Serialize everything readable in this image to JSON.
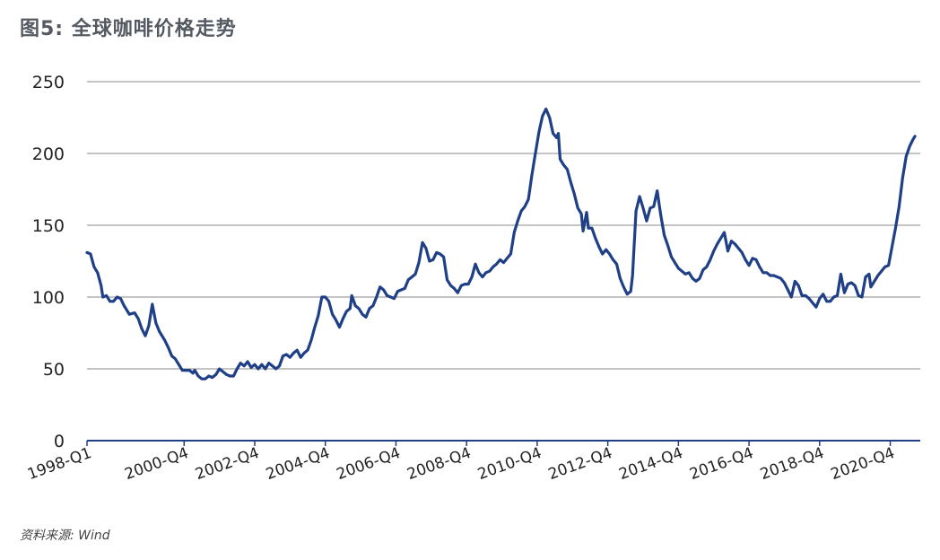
{
  "title": "图5: 全球咖啡价格走势",
  "source": "资料来源: Wind",
  "colors": {
    "line": "#1f3f86",
    "grid": "#8a8a8a",
    "axis": "#1f3f86"
  },
  "chart_data": {
    "type": "line",
    "title": "图5: 全球咖啡价格走势",
    "xlabel": "",
    "ylabel": "",
    "ylim": [
      0,
      250
    ],
    "yticks": [
      "0",
      "50",
      "100",
      "150",
      "200",
      "250"
    ],
    "xlim": [
      1998.0,
      2021.6
    ],
    "xticks": [
      {
        "label": "1998-Q1",
        "x": 1998.0
      },
      {
        "label": "2000-Q4",
        "x": 2000.75
      },
      {
        "label": "2002-Q4",
        "x": 2002.75
      },
      {
        "label": "2004-Q4",
        "x": 2004.75
      },
      {
        "label": "2006-Q4",
        "x": 2006.75
      },
      {
        "label": "2008-Q4",
        "x": 2008.75
      },
      {
        "label": "2010-Q4",
        "x": 2010.75
      },
      {
        "label": "2012-Q4",
        "x": 2012.75
      },
      {
        "label": "2014-Q4",
        "x": 2014.75
      },
      {
        "label": "2016-Q4",
        "x": 2016.75
      },
      {
        "label": "2018-Q4",
        "x": 2018.75
      },
      {
        "label": "2020-Q4",
        "x": 2020.75
      }
    ],
    "grid": true,
    "series": [
      {
        "values": [
          [
            1998.0,
            131
          ],
          [
            1998.1,
            130
          ],
          [
            1998.2,
            121
          ],
          [
            1998.3,
            117
          ],
          [
            1998.4,
            108
          ],
          [
            1998.45,
            100
          ],
          [
            1998.55,
            101
          ],
          [
            1998.65,
            97
          ],
          [
            1998.75,
            97
          ],
          [
            1998.85,
            100
          ],
          [
            1998.95,
            99
          ],
          [
            1999.05,
            94
          ],
          [
            1999.2,
            88
          ],
          [
            1999.35,
            89
          ],
          [
            1999.45,
            85
          ],
          [
            1999.55,
            78
          ],
          [
            1999.65,
            73
          ],
          [
            1999.75,
            80
          ],
          [
            1999.85,
            95
          ],
          [
            1999.95,
            82
          ],
          [
            2000.05,
            76
          ],
          [
            2000.2,
            70
          ],
          [
            2000.3,
            65
          ],
          [
            2000.4,
            59
          ],
          [
            2000.5,
            57
          ],
          [
            2000.6,
            53
          ],
          [
            2000.7,
            49
          ],
          [
            2000.8,
            49
          ],
          [
            2000.9,
            49
          ],
          [
            2001.0,
            47
          ],
          [
            2001.05,
            49
          ],
          [
            2001.15,
            45
          ],
          [
            2001.25,
            43
          ],
          [
            2001.35,
            43
          ],
          [
            2001.45,
            45
          ],
          [
            2001.55,
            44
          ],
          [
            2001.65,
            46
          ],
          [
            2001.75,
            50
          ],
          [
            2001.85,
            48
          ],
          [
            2001.95,
            46
          ],
          [
            2002.05,
            45
          ],
          [
            2002.15,
            45
          ],
          [
            2002.25,
            50
          ],
          [
            2002.35,
            54
          ],
          [
            2002.45,
            52
          ],
          [
            2002.55,
            55
          ],
          [
            2002.65,
            51
          ],
          [
            2002.75,
            53
          ],
          [
            2002.85,
            50
          ],
          [
            2002.95,
            53
          ],
          [
            2003.05,
            50
          ],
          [
            2003.15,
            54
          ],
          [
            2003.25,
            52
          ],
          [
            2003.35,
            50
          ],
          [
            2003.45,
            52
          ],
          [
            2003.55,
            59
          ],
          [
            2003.65,
            60
          ],
          [
            2003.75,
            58
          ],
          [
            2003.85,
            61
          ],
          [
            2003.95,
            63
          ],
          [
            2004.05,
            58
          ],
          [
            2004.15,
            61
          ],
          [
            2004.25,
            63
          ],
          [
            2004.35,
            70
          ],
          [
            2004.45,
            79
          ],
          [
            2004.55,
            87
          ],
          [
            2004.65,
            100
          ],
          [
            2004.75,
            100
          ],
          [
            2004.85,
            97
          ],
          [
            2004.95,
            88
          ],
          [
            2005.05,
            84
          ],
          [
            2005.15,
            79
          ],
          [
            2005.25,
            85
          ],
          [
            2005.35,
            90
          ],
          [
            2005.45,
            92
          ],
          [
            2005.5,
            101
          ],
          [
            2005.6,
            94
          ],
          [
            2005.7,
            92
          ],
          [
            2005.8,
            88
          ],
          [
            2005.9,
            86
          ],
          [
            2006.0,
            92
          ],
          [
            2006.1,
            94
          ],
          [
            2006.2,
            100
          ],
          [
            2006.3,
            107
          ],
          [
            2006.4,
            105
          ],
          [
            2006.5,
            101
          ],
          [
            2006.6,
            100
          ],
          [
            2006.7,
            99
          ],
          [
            2006.8,
            104
          ],
          [
            2006.9,
            105
          ],
          [
            2007.0,
            106
          ],
          [
            2007.1,
            112
          ],
          [
            2007.2,
            114
          ],
          [
            2007.3,
            116
          ],
          [
            2007.4,
            124
          ],
          [
            2007.5,
            138
          ],
          [
            2007.6,
            134
          ],
          [
            2007.7,
            125
          ],
          [
            2007.8,
            126
          ],
          [
            2007.9,
            131
          ],
          [
            2008.0,
            130
          ],
          [
            2008.1,
            128
          ],
          [
            2008.2,
            112
          ],
          [
            2008.3,
            108
          ],
          [
            2008.4,
            106
          ],
          [
            2008.5,
            103
          ],
          [
            2008.6,
            108
          ],
          [
            2008.7,
            109
          ],
          [
            2008.8,
            109
          ],
          [
            2008.9,
            114
          ],
          [
            2009.0,
            123
          ],
          [
            2009.1,
            117
          ],
          [
            2009.2,
            114
          ],
          [
            2009.3,
            117
          ],
          [
            2009.4,
            118
          ],
          [
            2009.5,
            121
          ],
          [
            2009.6,
            123
          ],
          [
            2009.7,
            126
          ],
          [
            2009.8,
            124
          ],
          [
            2009.9,
            127
          ],
          [
            2010.0,
            130
          ],
          [
            2010.1,
            145
          ],
          [
            2010.2,
            153
          ],
          [
            2010.3,
            160
          ],
          [
            2010.4,
            163
          ],
          [
            2010.5,
            168
          ],
          [
            2010.6,
            185
          ],
          [
            2010.7,
            200
          ],
          [
            2010.8,
            215
          ],
          [
            2010.9,
            226
          ],
          [
            2011.0,
            231
          ],
          [
            2011.1,
            225
          ],
          [
            2011.2,
            214
          ],
          [
            2011.3,
            211
          ],
          [
            2011.35,
            214
          ],
          [
            2011.4,
            196
          ],
          [
            2011.5,
            192
          ],
          [
            2011.6,
            189
          ],
          [
            2011.7,
            180
          ],
          [
            2011.8,
            172
          ],
          [
            2011.9,
            162
          ],
          [
            2012.0,
            158
          ],
          [
            2012.05,
            146
          ],
          [
            2012.15,
            159
          ],
          [
            2012.2,
            148
          ],
          [
            2012.3,
            148
          ],
          [
            2012.4,
            141
          ],
          [
            2012.5,
            135
          ],
          [
            2012.6,
            130
          ],
          [
            2012.7,
            133
          ],
          [
            2012.8,
            130
          ],
          [
            2012.9,
            126
          ],
          [
            2013.0,
            123
          ],
          [
            2013.1,
            113
          ],
          [
            2013.2,
            107
          ],
          [
            2013.3,
            102
          ],
          [
            2013.4,
            104
          ],
          [
            2013.45,
            115
          ],
          [
            2013.55,
            160
          ],
          [
            2013.65,
            170
          ],
          [
            2013.75,
            162
          ],
          [
            2013.85,
            153
          ],
          [
            2013.95,
            162
          ],
          [
            2014.05,
            163
          ],
          [
            2014.15,
            174
          ],
          [
            2014.25,
            157
          ],
          [
            2014.35,
            143
          ],
          [
            2014.45,
            136
          ],
          [
            2014.55,
            128
          ],
          [
            2014.65,
            124
          ],
          [
            2014.75,
            120
          ],
          [
            2014.85,
            118
          ],
          [
            2014.95,
            116
          ],
          [
            2015.05,
            117
          ],
          [
            2015.15,
            113
          ],
          [
            2015.25,
            111
          ],
          [
            2015.35,
            113
          ],
          [
            2015.45,
            119
          ],
          [
            2015.55,
            121
          ],
          [
            2015.65,
            126
          ],
          [
            2015.75,
            132
          ],
          [
            2015.85,
            137
          ],
          [
            2015.95,
            141
          ],
          [
            2016.05,
            145
          ],
          [
            2016.15,
            132
          ],
          [
            2016.25,
            139
          ],
          [
            2016.35,
            137
          ],
          [
            2016.45,
            134
          ],
          [
            2016.55,
            131
          ],
          [
            2016.65,
            126
          ],
          [
            2016.75,
            122
          ],
          [
            2016.85,
            127
          ],
          [
            2016.95,
            126
          ],
          [
            2017.05,
            121
          ],
          [
            2017.15,
            117
          ],
          [
            2017.25,
            117
          ],
          [
            2017.35,
            115
          ],
          [
            2017.45,
            115
          ],
          [
            2017.55,
            114
          ],
          [
            2017.65,
            113
          ],
          [
            2017.75,
            110
          ],
          [
            2017.85,
            105
          ],
          [
            2017.95,
            100
          ],
          [
            2018.05,
            111
          ],
          [
            2018.15,
            108
          ],
          [
            2018.25,
            101
          ],
          [
            2018.35,
            101
          ],
          [
            2018.45,
            99
          ],
          [
            2018.55,
            96
          ],
          [
            2018.65,
            93
          ],
          [
            2018.75,
            99
          ],
          [
            2018.85,
            102
          ],
          [
            2018.95,
            97
          ],
          [
            2019.05,
            97
          ],
          [
            2019.15,
            100
          ],
          [
            2019.25,
            101
          ],
          [
            2019.35,
            116
          ],
          [
            2019.45,
            103
          ],
          [
            2019.55,
            109
          ],
          [
            2019.65,
            110
          ],
          [
            2019.75,
            108
          ],
          [
            2019.85,
            101
          ],
          [
            2019.95,
            100
          ],
          [
            2020.05,
            114
          ],
          [
            2020.15,
            116
          ],
          [
            2020.2,
            107
          ],
          [
            2020.3,
            111
          ],
          [
            2020.4,
            115
          ],
          [
            2020.5,
            118
          ],
          [
            2020.6,
            121
          ],
          [
            2020.7,
            122
          ],
          [
            2020.8,
            135
          ],
          [
            2020.9,
            148
          ],
          [
            2021.0,
            163
          ],
          [
            2021.1,
            183
          ],
          [
            2021.2,
            198
          ],
          [
            2021.3,
            205
          ],
          [
            2021.4,
            210
          ],
          [
            2021.45,
            212
          ]
        ]
      }
    ]
  }
}
